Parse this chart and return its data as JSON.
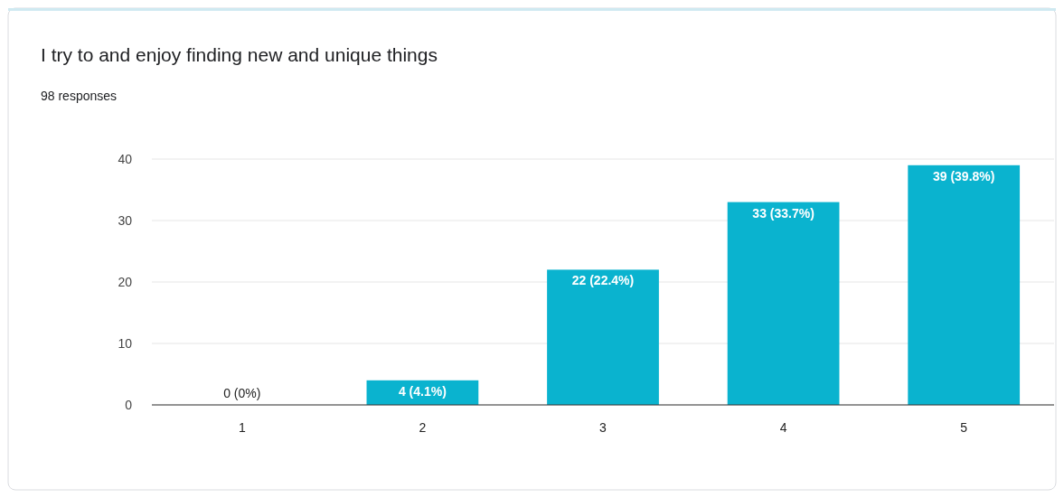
{
  "chart_data": {
    "type": "bar",
    "title": "I try to and enjoy finding new and unique things",
    "subtitle": "98 responses",
    "categories": [
      "1",
      "2",
      "3",
      "4",
      "5"
    ],
    "values": [
      0,
      4,
      22,
      33,
      39
    ],
    "value_labels": [
      "0 (0%)",
      "4 (4.1%)",
      "22 (22.4%)",
      "33 (33.7%)",
      "39 (39.8%)"
    ],
    "color": "#0ab3cf",
    "ylim": [
      0,
      40
    ],
    "yticks": [
      0,
      10,
      20,
      30,
      40
    ],
    "grid": "y"
  }
}
